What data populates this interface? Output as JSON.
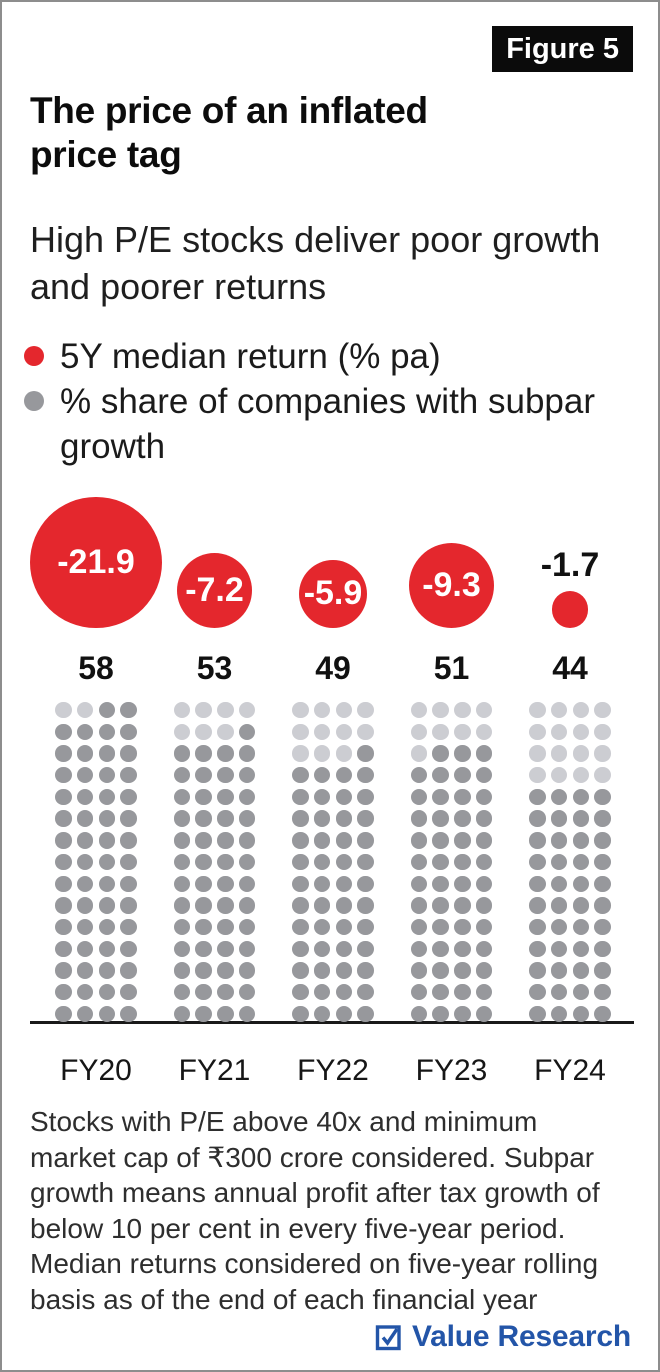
{
  "figure_badge": "Figure 5",
  "title": "The price of an inflated\nprice tag",
  "subtitle": "High P/E stocks deliver poor growth\nand poorer returns",
  "legend": [
    {
      "label": "5Y median return (% pa)",
      "color": "#e4272d"
    },
    {
      "label": "% share of companies with subpar\ngrowth",
      "color": "#97989c"
    }
  ],
  "chart_data": {
    "type": "bubble-waffle",
    "categories": [
      "FY20",
      "FY21",
      "FY22",
      "FY23",
      "FY24"
    ],
    "series": [
      {
        "name": "5Y median return (% pa)",
        "type": "bubble",
        "values": [
          -21.9,
          -7.2,
          -5.9,
          -9.3,
          -1.7
        ],
        "unit": "% pa"
      },
      {
        "name": "% share of companies with subpar growth",
        "type": "waffle",
        "values": [
          58,
          53,
          49,
          51,
          44
        ],
        "waffle_total": 60,
        "waffle_cols": 4,
        "waffle_rows": 15
      }
    ],
    "colors": {
      "bubble": "#e4272d",
      "bubble_label": "#ffffff",
      "dot_filled": "#97989c",
      "dot_empty": "#cccdd2"
    },
    "legend_position": "top-left",
    "grid": false
  },
  "footnote": "Stocks with P/E above 40x and minimum\nmarket cap of ₹300 crore considered. Subpar\ngrowth means annual profit after tax growth of\nbelow 10 per cent in every five-year period.\nMedian returns considered on five-year rolling\nbasis as of the end of each financial year",
  "logo": {
    "text": "Value Research",
    "color": "#2355a8"
  }
}
